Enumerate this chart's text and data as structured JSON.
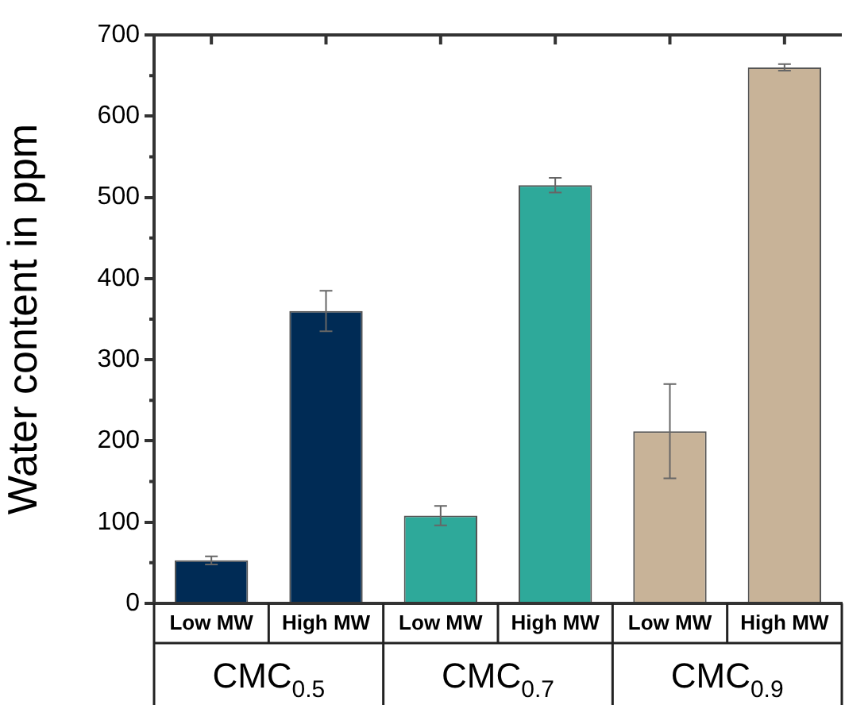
{
  "chart_data": {
    "type": "bar",
    "ylabel": "Water content in ppm",
    "categories": [
      "Low MW",
      "High MW",
      "Low MW",
      "High MW",
      "Low MW",
      "High MW"
    ],
    "values": [
      53,
      360,
      108,
      515,
      212,
      660
    ],
    "errors": [
      5,
      25,
      12,
      9,
      58,
      4
    ],
    "colors": [
      "#002b55",
      "#002b55",
      "#2ea99a",
      "#2ea99a",
      "#c8b398",
      "#c8b398"
    ],
    "annotations": [
      "CMC$_{0.5}$",
      "CMC$_{0.7}$",
      "CMC$_{0.9}$"
    ],
    "ylim": [
      0,
      700
    ],
    "yticks": [
      0,
      100,
      200,
      300,
      400,
      500,
      600,
      700
    ],
    "grid": false,
    "legend": false
  }
}
